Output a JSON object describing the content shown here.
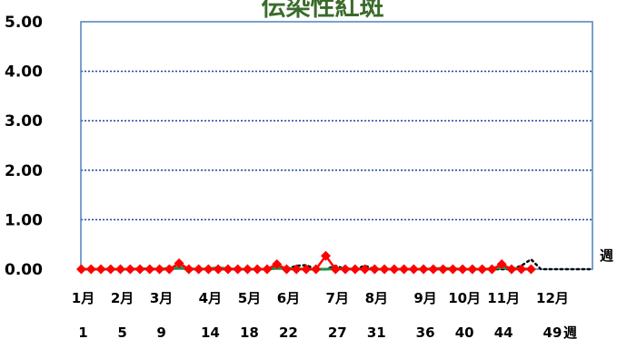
{
  "chart_data": {
    "type": "line",
    "title": "伝染性紅斑",
    "xlabel": "週",
    "ylabel": "",
    "ylim": [
      0,
      5
    ],
    "yticks": [
      "0.00",
      "1.00",
      "2.00",
      "3.00",
      "4.00",
      "5.00"
    ],
    "xlim": [
      1,
      53
    ],
    "month_labels": [
      {
        "label": "1月",
        "week": 1
      },
      {
        "label": "2月",
        "week": 5
      },
      {
        "label": "3月",
        "week": 9
      },
      {
        "label": "4月",
        "week": 14
      },
      {
        "label": "5月",
        "week": 18
      },
      {
        "label": "6月",
        "week": 22
      },
      {
        "label": "7月",
        "week": 27
      },
      {
        "label": "8月",
        "week": 31
      },
      {
        "label": "9月",
        "week": 36
      },
      {
        "label": "10月",
        "week": 40
      },
      {
        "label": "11月",
        "week": 44
      },
      {
        "label": "12月",
        "week": 49
      }
    ],
    "week_labels": [
      {
        "label": "1",
        "week": 1
      },
      {
        "label": "5",
        "week": 5
      },
      {
        "label": "9",
        "week": 9
      },
      {
        "label": "14",
        "week": 14
      },
      {
        "label": "18",
        "week": 18
      },
      {
        "label": "22",
        "week": 22
      },
      {
        "label": "27",
        "week": 27
      },
      {
        "label": "31",
        "week": 31
      },
      {
        "label": "36",
        "week": 36
      },
      {
        "label": "40",
        "week": 40
      },
      {
        "label": "44",
        "week": 44
      },
      {
        "label": "49",
        "week": 49
      }
    ],
    "grid": "horizontal-dotted",
    "colors": {
      "current": "#ff0000",
      "average": "#1a9641",
      "previous": "#000000",
      "frame": "#4f81bd",
      "grid": "#1f3f9f"
    },
    "series": [
      {
        "style": "red-diamond-line",
        "x": [
          1,
          2,
          3,
          4,
          5,
          6,
          7,
          8,
          9,
          10,
          11,
          12,
          13,
          14,
          15,
          16,
          17,
          18,
          19,
          20,
          21,
          22,
          23,
          24,
          25,
          26,
          27,
          28,
          29,
          30,
          31,
          32,
          33,
          34,
          35,
          36,
          37,
          38,
          39,
          40,
          41,
          42,
          43,
          44,
          45,
          46,
          47
        ],
        "values": [
          0,
          0,
          0,
          0,
          0,
          0,
          0,
          0,
          0,
          0,
          0.12,
          0,
          0,
          0,
          0,
          0,
          0,
          0,
          0,
          0,
          0.1,
          0,
          0,
          0,
          0,
          0.27,
          0,
          0,
          0,
          0,
          0,
          0,
          0,
          0,
          0,
          0,
          0,
          0,
          0,
          0,
          0,
          0,
          0,
          0.1,
          0,
          0,
          0
        ]
      },
      {
        "style": "green-solid-line",
        "x": [
          1,
          2,
          3,
          4,
          5,
          6,
          7,
          8,
          9,
          10,
          11,
          12,
          13,
          14,
          15,
          16,
          17,
          18,
          19,
          20,
          21,
          22,
          23,
          24,
          25,
          26,
          27,
          28,
          29,
          30,
          31,
          32,
          33,
          34,
          35,
          36,
          37,
          38,
          39,
          40,
          41,
          42,
          43,
          44,
          45,
          46,
          47
        ],
        "values": [
          0,
          0,
          0,
          0,
          0,
          0,
          0.01,
          0.01,
          0,
          0.02,
          0.03,
          0.01,
          0,
          0.01,
          0.03,
          0.01,
          0,
          0,
          0,
          0,
          0.02,
          0.02,
          0.01,
          0,
          0,
          0,
          0.01,
          0.01,
          0,
          0.01,
          0,
          0,
          0,
          0,
          0,
          0,
          0.01,
          0.02,
          0.01,
          0,
          0,
          0,
          0.01,
          0.03,
          0.02,
          0.01,
          0
        ]
      },
      {
        "style": "black-dotted-line",
        "x": [
          1,
          2,
          3,
          4,
          5,
          6,
          7,
          8,
          9,
          10,
          11,
          12,
          13,
          14,
          15,
          16,
          17,
          18,
          19,
          20,
          21,
          22,
          23,
          24,
          25,
          26,
          27,
          28,
          29,
          30,
          31,
          32,
          33,
          34,
          35,
          36,
          37,
          38,
          39,
          40,
          41,
          42,
          43,
          44,
          45,
          46,
          47,
          48,
          49,
          50,
          51,
          52,
          53
        ],
        "values": [
          0,
          0,
          0,
          0,
          0,
          0,
          0,
          0,
          0,
          0,
          0.04,
          0,
          0,
          0,
          0,
          0,
          0,
          0,
          0,
          0,
          0.05,
          0,
          0.07,
          0.08,
          0,
          0,
          0.07,
          0,
          0,
          0.07,
          0,
          0,
          0,
          0,
          0,
          0,
          0,
          0,
          0,
          0,
          0,
          0,
          0,
          0,
          0,
          0.07,
          0.2,
          0,
          0,
          0,
          0,
          0,
          0
        ]
      }
    ]
  }
}
